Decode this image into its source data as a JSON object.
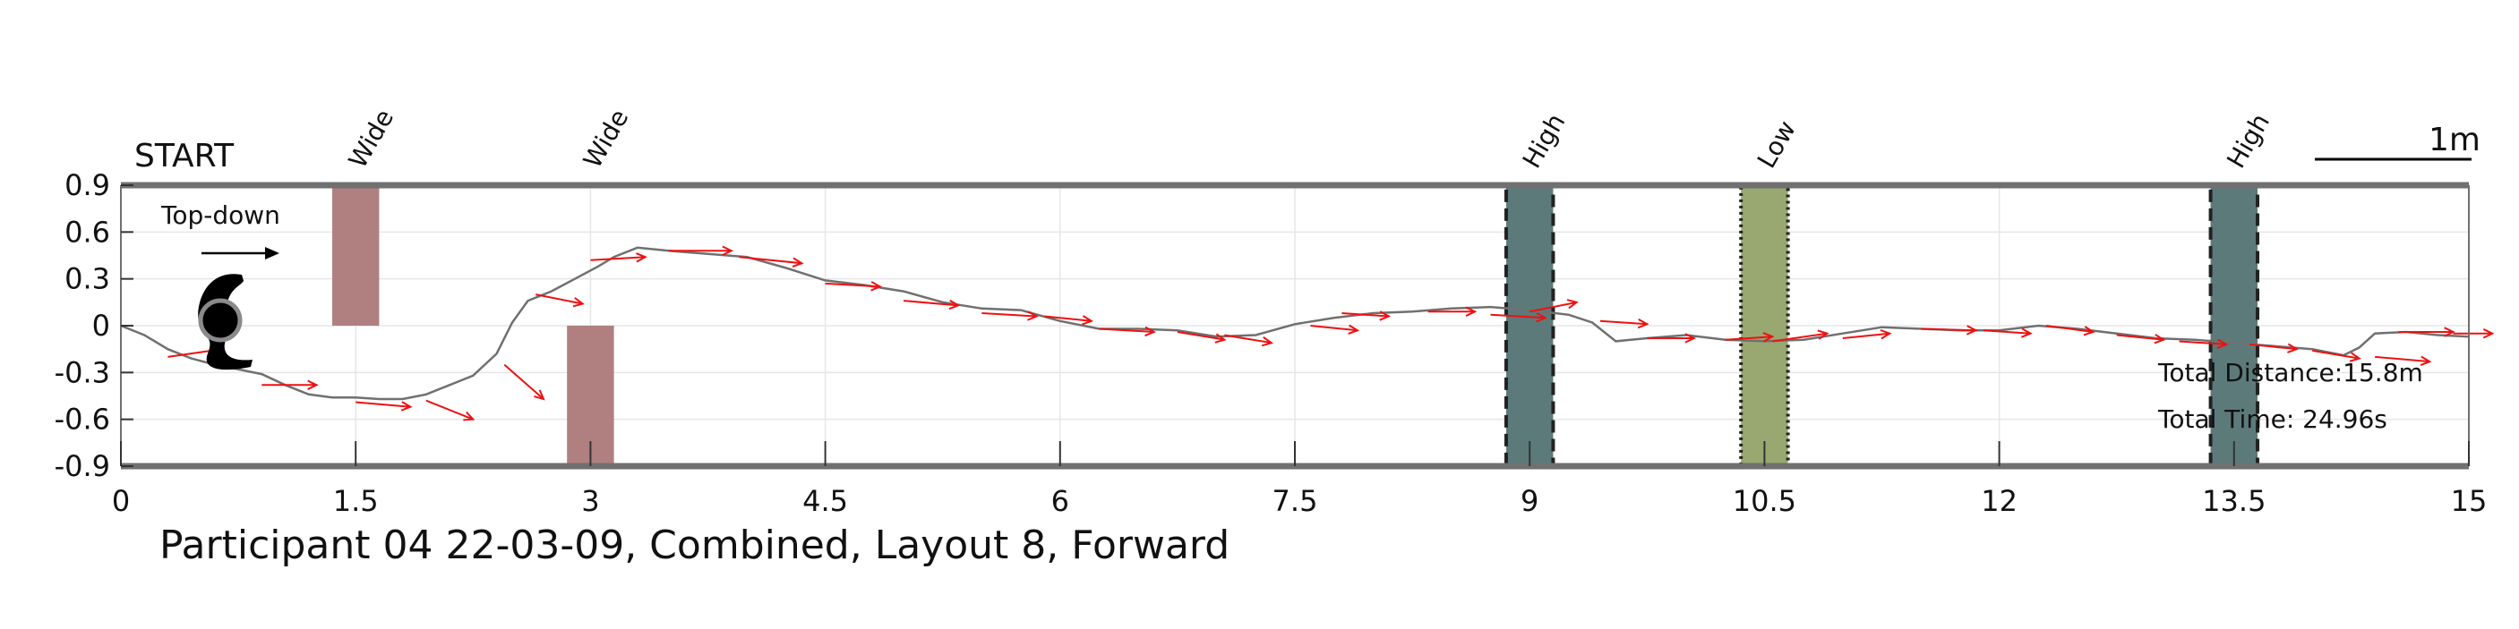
{
  "chart_data": {
    "type": "line",
    "title": "Participant 04 22-03-09, Combined, Layout 8, Forward",
    "start_label": "START",
    "top_down_label": "Top-down",
    "scale_label": "1m",
    "xlim": [
      0,
      15
    ],
    "ylim": [
      -0.9,
      0.9
    ],
    "xticks": [
      "0",
      "1.5",
      "3",
      "4.5",
      "6",
      "7.5",
      "9",
      "10.5",
      "12",
      "13.5",
      "15"
    ],
    "yticks": [
      "0.9",
      "0.6",
      "0.3",
      "0",
      "-0.3",
      "-0.6",
      "-0.9"
    ],
    "grid": true,
    "total_distance": "Total Distance:15.8m",
    "total_time": "Total Time: 24.96s",
    "obstacles": [
      {
        "label": "Wide",
        "x": [
          1.35,
          1.65
        ],
        "y": [
          0,
          0.9
        ],
        "color": "#b08080"
      },
      {
        "label": "Wide",
        "x": [
          2.85,
          3.15
        ],
        "y": [
          -0.9,
          0
        ],
        "color": "#b08080"
      },
      {
        "label": "High",
        "x": [
          8.85,
          9.15
        ],
        "y": [
          -0.9,
          0.9
        ],
        "color": "#5d7a7a",
        "border": "dashed"
      },
      {
        "label": "Low",
        "x": [
          10.35,
          10.65
        ],
        "y": [
          -0.9,
          0.9
        ],
        "color": "#98a870",
        "border": "dotted"
      },
      {
        "label": "High",
        "x": [
          13.35,
          13.65
        ],
        "y": [
          -0.9,
          0.9
        ],
        "color": "#5d7a7a",
        "border": "dashed"
      }
    ],
    "path": [
      [
        0,
        0
      ],
      [
        0.15,
        -0.06
      ],
      [
        0.3,
        -0.15
      ],
      [
        0.45,
        -0.21
      ],
      [
        0.6,
        -0.25
      ],
      [
        0.75,
        -0.28
      ],
      [
        0.9,
        -0.31
      ],
      [
        1.05,
        -0.38
      ],
      [
        1.2,
        -0.44
      ],
      [
        1.35,
        -0.46
      ],
      [
        1.5,
        -0.46
      ],
      [
        1.65,
        -0.47
      ],
      [
        1.8,
        -0.47
      ],
      [
        1.95,
        -0.44
      ],
      [
        2.1,
        -0.38
      ],
      [
        2.25,
        -0.32
      ],
      [
        2.4,
        -0.18
      ],
      [
        2.5,
        0.02
      ],
      [
        2.6,
        0.16
      ],
      [
        2.75,
        0.22
      ],
      [
        2.9,
        0.3
      ],
      [
        3.05,
        0.38
      ],
      [
        3.15,
        0.44
      ],
      [
        3.3,
        0.5
      ],
      [
        3.5,
        0.48
      ],
      [
        3.75,
        0.46
      ],
      [
        4.0,
        0.44
      ],
      [
        4.25,
        0.37
      ],
      [
        4.5,
        0.29
      ],
      [
        4.75,
        0.26
      ],
      [
        5.0,
        0.22
      ],
      [
        5.25,
        0.15
      ],
      [
        5.5,
        0.11
      ],
      [
        5.75,
        0.1
      ],
      [
        6.0,
        0.03
      ],
      [
        6.25,
        -0.02
      ],
      [
        6.5,
        -0.02
      ],
      [
        6.75,
        -0.03
      ],
      [
        7.0,
        -0.07
      ],
      [
        7.25,
        -0.06
      ],
      [
        7.5,
        0.01
      ],
      [
        7.75,
        0.05
      ],
      [
        8.0,
        0.08
      ],
      [
        8.25,
        0.09
      ],
      [
        8.5,
        0.11
      ],
      [
        8.75,
        0.12
      ],
      [
        9.0,
        0.1
      ],
      [
        9.25,
        0.07
      ],
      [
        9.4,
        0.02
      ],
      [
        9.55,
        -0.1
      ],
      [
        9.75,
        -0.08
      ],
      [
        10.0,
        -0.06
      ],
      [
        10.25,
        -0.09
      ],
      [
        10.5,
        -0.1
      ],
      [
        10.75,
        -0.09
      ],
      [
        11.0,
        -0.05
      ],
      [
        11.25,
        -0.01
      ],
      [
        11.5,
        -0.02
      ],
      [
        11.75,
        -0.03
      ],
      [
        12.0,
        -0.03
      ],
      [
        12.25,
        0.0
      ],
      [
        12.5,
        -0.02
      ],
      [
        12.75,
        -0.05
      ],
      [
        13.0,
        -0.08
      ],
      [
        13.25,
        -0.09
      ],
      [
        13.5,
        -0.11
      ],
      [
        13.75,
        -0.13
      ],
      [
        14.0,
        -0.15
      ],
      [
        14.2,
        -0.19
      ],
      [
        14.3,
        -0.14
      ],
      [
        14.4,
        -0.05
      ],
      [
        14.6,
        -0.04
      ],
      [
        14.8,
        -0.06
      ],
      [
        15.0,
        -0.07
      ]
    ],
    "direction_arrows": [
      [
        0.3,
        -0.2,
        0.35,
        0.05
      ],
      [
        0.9,
        -0.38,
        0.35,
        0.0
      ],
      [
        1.5,
        -0.49,
        0.35,
        -0.03
      ],
      [
        1.95,
        -0.48,
        0.3,
        -0.12
      ],
      [
        2.45,
        -0.25,
        0.25,
        -0.22
      ],
      [
        2.65,
        0.2,
        0.3,
        -0.06
      ],
      [
        3.0,
        0.42,
        0.35,
        0.02
      ],
      [
        3.5,
        0.48,
        0.4,
        0.0
      ],
      [
        3.95,
        0.44,
        0.4,
        -0.04
      ],
      [
        4.5,
        0.27,
        0.35,
        -0.02
      ],
      [
        5.0,
        0.16,
        0.35,
        -0.03
      ],
      [
        5.5,
        0.08,
        0.35,
        -0.02
      ],
      [
        5.9,
        0.06,
        0.3,
        -0.03
      ],
      [
        6.25,
        -0.02,
        0.35,
        -0.02
      ],
      [
        6.75,
        -0.04,
        0.3,
        -0.05
      ],
      [
        7.05,
        -0.06,
        0.3,
        -0.05
      ],
      [
        7.6,
        0.0,
        0.3,
        -0.03
      ],
      [
        7.8,
        0.08,
        0.3,
        -0.02
      ],
      [
        8.35,
        0.09,
        0.3,
        0.0
      ],
      [
        8.75,
        0.07,
        0.35,
        -0.02
      ],
      [
        9.0,
        0.09,
        0.3,
        0.06
      ],
      [
        9.45,
        0.03,
        0.3,
        -0.02
      ],
      [
        9.75,
        -0.08,
        0.3,
        0.0
      ],
      [
        10.25,
        -0.09,
        0.3,
        0.02
      ],
      [
        10.55,
        -0.1,
        0.35,
        0.05
      ],
      [
        11.0,
        -0.08,
        0.3,
        0.03
      ],
      [
        11.5,
        -0.02,
        0.35,
        -0.01
      ],
      [
        11.9,
        -0.03,
        0.3,
        -0.02
      ],
      [
        12.3,
        0.0,
        0.3,
        -0.04
      ],
      [
        12.75,
        -0.06,
        0.3,
        -0.03
      ],
      [
        13.15,
        -0.1,
        0.3,
        -0.02
      ],
      [
        13.6,
        -0.12,
        0.3,
        -0.03
      ],
      [
        14.0,
        -0.16,
        0.3,
        -0.05
      ],
      [
        14.4,
        -0.2,
        0.35,
        -0.03
      ],
      [
        14.55,
        -0.04,
        0.35,
        0.0
      ],
      [
        14.9,
        -0.05,
        0.25,
        0.0
      ]
    ],
    "colors": {
      "path": "#707070",
      "arrow": "#ee1111",
      "axis": "#707070",
      "grid": "#e6e6e6"
    }
  }
}
